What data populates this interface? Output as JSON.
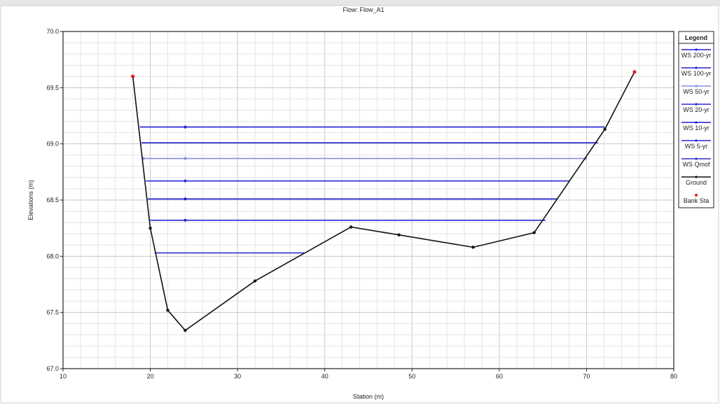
{
  "chart_data": {
    "type": "line",
    "title": "Flow: Flow_A1",
    "xlabel": "Station (m)",
    "ylabel": "Elevations (m)",
    "xlim": [
      10,
      80
    ],
    "ylim": [
      67.0,
      70.0
    ],
    "xticks": [
      10,
      20,
      30,
      40,
      50,
      60,
      70,
      80
    ],
    "yticks": [
      67.0,
      67.5,
      68.0,
      68.5,
      69.0,
      69.5,
      70.0
    ],
    "grid": true,
    "legend_title": "Legend",
    "legend_position": "right",
    "series": [
      {
        "name": "WS 200-yr",
        "type": "ws",
        "color": "#1f1fd8",
        "y": 69.15,
        "x": [
          18.8,
          72.1
        ],
        "markers": [
          24
        ]
      },
      {
        "name": "WS 100-yr",
        "type": "ws",
        "color": "#2424d8",
        "y": 69.01,
        "x": [
          19.0,
          71.3
        ],
        "markers": []
      },
      {
        "name": "WS 50-yr",
        "type": "ws",
        "color": "#8a8ae8",
        "y": 68.87,
        "x": [
          19.2,
          69.9
        ],
        "markers": [
          19.2,
          24,
          69.9
        ]
      },
      {
        "name": "WS 20-yr",
        "type": "ws",
        "color": "#2a2ad8",
        "y": 68.67,
        "x": [
          19.5,
          68.0
        ],
        "markers": [
          24
        ]
      },
      {
        "name": "WS 10-yr",
        "type": "ws",
        "color": "#1a1ad0",
        "y": 68.51,
        "x": [
          19.7,
          66.7
        ],
        "markers": [
          24
        ]
      },
      {
        "name": "WS 5-yr",
        "type": "ws",
        "color": "#2626d4",
        "y": 68.32,
        "x": [
          20.0,
          65.3
        ],
        "markers": [
          24
        ]
      },
      {
        "name": "WS Qmof",
        "type": "ws",
        "color": "#3030c8",
        "y": 68.03,
        "x": [
          20.5,
          37.6
        ],
        "markers": []
      },
      {
        "name": "Ground",
        "type": "ground",
        "color": "#111111",
        "x": [
          18.0,
          20.0,
          22.0,
          24.0,
          32.0,
          43.0,
          48.5,
          57.0,
          64.0,
          72.1,
          75.5
        ],
        "y": [
          69.6,
          68.25,
          67.52,
          67.34,
          67.78,
          68.26,
          68.19,
          68.08,
          68.21,
          69.13,
          69.64
        ]
      },
      {
        "name": "Bank Sta",
        "type": "bank",
        "color": "#e02020",
        "x": [
          18.0,
          75.5
        ],
        "y": [
          69.6,
          69.64
        ]
      }
    ]
  }
}
